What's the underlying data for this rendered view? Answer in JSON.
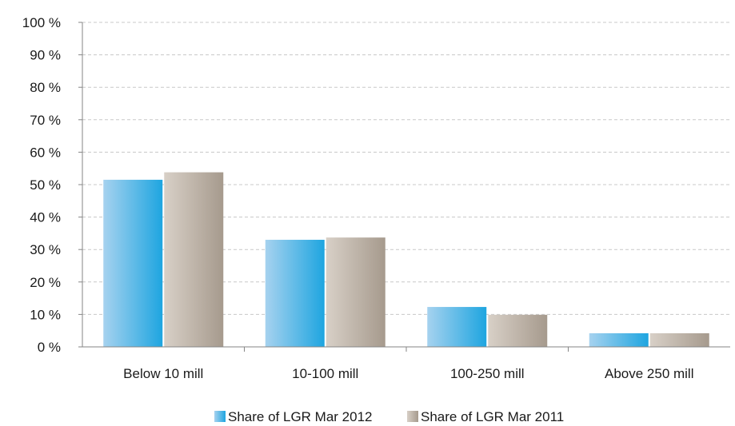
{
  "chart_data": {
    "type": "bar",
    "title": "",
    "xlabel": "",
    "ylabel": "",
    "categories": [
      "Below 10 mill",
      "10-100 mill",
      "100-250 mill",
      "Above 250 mill"
    ],
    "series": [
      {
        "name": "Share of LGR Mar 2012",
        "values": [
          51.5,
          33.0,
          12.3,
          4.2
        ],
        "color": "#1ea5e0",
        "color_light": "#a6d2ef"
      },
      {
        "name": "Share of LGR Mar 2011",
        "values": [
          53.8,
          33.7,
          9.9,
          4.2
        ],
        "color": "#a69a8d",
        "color_light": "#d8d0c7"
      }
    ],
    "ylim": [
      0,
      100
    ],
    "ytick_step": 10,
    "ytick_suffix": " %",
    "grid": true,
    "grid_color": "#c8c8c8",
    "legend_position": "bottom"
  }
}
